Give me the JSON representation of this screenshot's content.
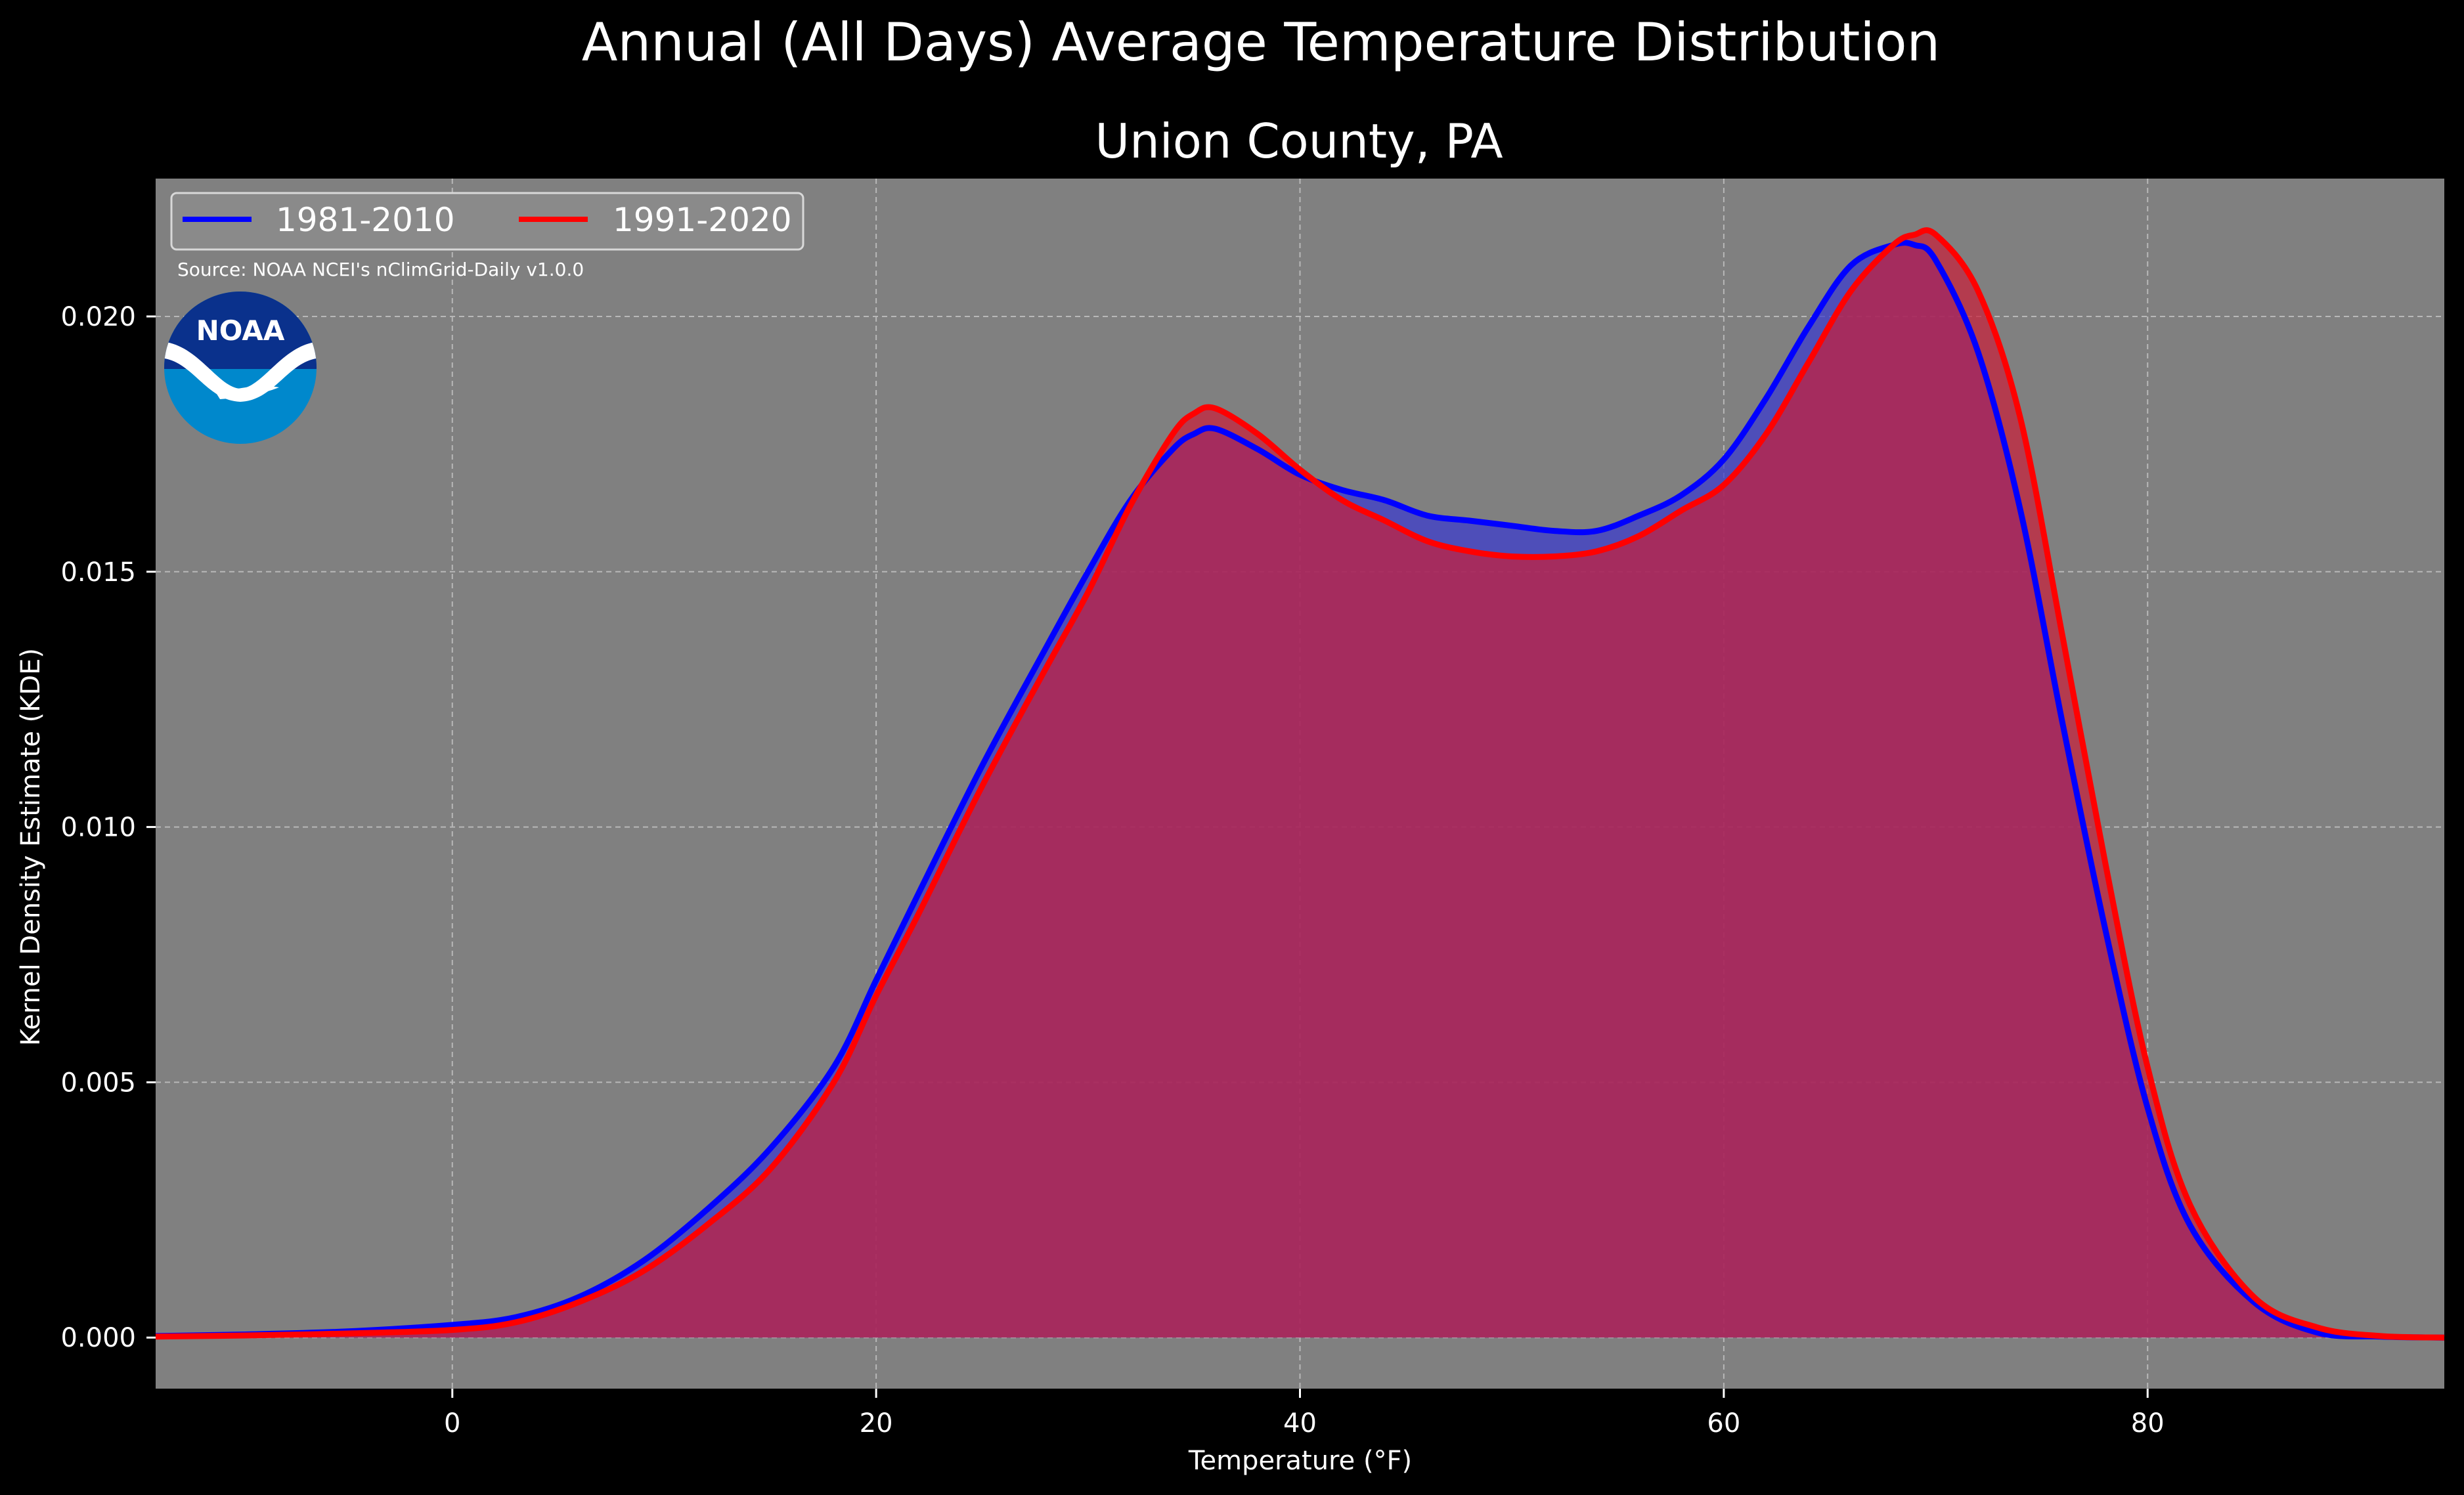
{
  "chart_data": {
    "type": "area",
    "suptitle": "Annual (All Days) Average Temperature Distribution",
    "title": "Union County, PA",
    "xlabel": "Temperature (°F)",
    "ylabel": "Kernel Density Estimate (KDE)",
    "xlim": [
      -14,
      94
    ],
    "ylim": [
      -0.001,
      0.0227
    ],
    "xticks": [
      0,
      20,
      40,
      60,
      80
    ],
    "yticks": [
      0.0,
      0.005,
      0.01,
      0.015,
      0.02
    ],
    "ytick_labels": [
      "0.000",
      "0.005",
      "0.010",
      "0.015",
      "0.020"
    ],
    "grid": true,
    "legend_position": "top-left",
    "source": "Source: NOAA NCEI's nClimGrid-Daily v1.0.0",
    "logo": "NOAA",
    "x": [
      -14,
      -10,
      -5,
      0,
      3,
      6,
      9,
      12,
      15,
      18,
      20,
      22,
      25,
      28,
      30,
      32,
      34,
      35,
      36,
      38,
      40,
      42,
      44,
      46,
      48,
      50,
      52,
      54,
      56,
      58,
      60,
      62,
      64,
      66,
      68,
      69,
      70,
      72,
      74,
      76,
      78,
      80,
      82,
      85,
      88,
      91,
      94
    ],
    "series": [
      {
        "name": "1981-2010",
        "color": "#0000ff",
        "fill": "#3a3acf",
        "values": [
          3e-05,
          6e-05,
          0.00012,
          0.00025,
          0.0004,
          0.0008,
          0.0015,
          0.0025,
          0.0037,
          0.0053,
          0.007,
          0.0087,
          0.0112,
          0.0135,
          0.015,
          0.0164,
          0.0174,
          0.0177,
          0.0178,
          0.0174,
          0.0169,
          0.0166,
          0.0164,
          0.0161,
          0.016,
          0.0159,
          0.0158,
          0.0158,
          0.0161,
          0.0165,
          0.0172,
          0.0184,
          0.0198,
          0.021,
          0.0214,
          0.0214,
          0.0211,
          0.0193,
          0.0162,
          0.012,
          0.008,
          0.0045,
          0.0022,
          0.0007,
          0.0001,
          2e-05,
          0.0
        ]
      },
      {
        "name": "1991-2020",
        "color": "#ff0000",
        "fill": "#c8203a",
        "values": [
          2e-05,
          4e-05,
          8e-05,
          0.00015,
          0.0003,
          0.0007,
          0.0013,
          0.0022,
          0.0033,
          0.005,
          0.0067,
          0.0083,
          0.0108,
          0.0131,
          0.0146,
          0.0163,
          0.0177,
          0.0181,
          0.0182,
          0.0177,
          0.017,
          0.0164,
          0.016,
          0.0156,
          0.0154,
          0.0153,
          0.0153,
          0.0154,
          0.0157,
          0.0162,
          0.0167,
          0.0177,
          0.0191,
          0.0205,
          0.0214,
          0.0216,
          0.0216,
          0.0205,
          0.018,
          0.0137,
          0.0093,
          0.0053,
          0.0026,
          0.0008,
          0.0002,
          3e-05,
          0.0
        ]
      }
    ]
  }
}
